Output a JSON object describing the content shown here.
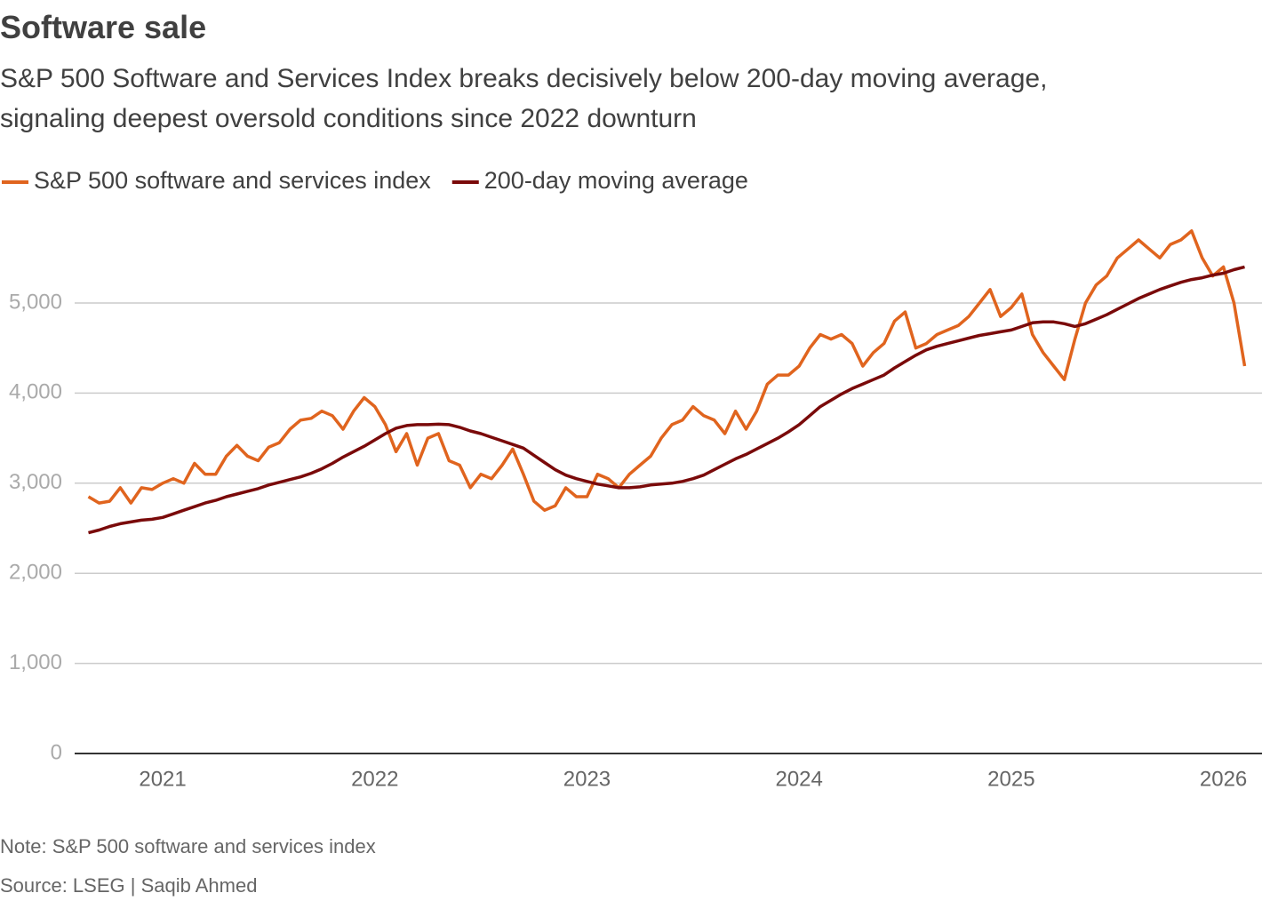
{
  "chart_data": {
    "type": "line",
    "title": "Software sale",
    "subtitle": "S&P 500 Software and Services Index breaks decisively below 200-day moving average, signaling deepest oversold conditions since 2022 downturn",
    "note": "Note: S&P 500 software and services index",
    "source": "Source: LSEG | Saqib Ahmed",
    "x": [
      2020.65,
      2020.7,
      2020.75,
      2020.8,
      2020.85,
      2020.9,
      2020.95,
      2021.0,
      2021.05,
      2021.1,
      2021.15,
      2021.2,
      2021.25,
      2021.3,
      2021.35,
      2021.4,
      2021.45,
      2021.5,
      2021.55,
      2021.6,
      2021.65,
      2021.7,
      2021.75,
      2021.8,
      2021.85,
      2021.9,
      2021.95,
      2022.0,
      2022.05,
      2022.1,
      2022.15,
      2022.2,
      2022.25,
      2022.3,
      2022.35,
      2022.4,
      2022.45,
      2022.5,
      2022.55,
      2022.6,
      2022.65,
      2022.7,
      2022.75,
      2022.8,
      2022.85,
      2022.9,
      2022.95,
      2023.0,
      2023.05,
      2023.1,
      2023.15,
      2023.2,
      2023.25,
      2023.3,
      2023.35,
      2023.4,
      2023.45,
      2023.5,
      2023.55,
      2023.6,
      2023.65,
      2023.7,
      2023.75,
      2023.8,
      2023.85,
      2023.9,
      2023.95,
      2024.0,
      2024.05,
      2024.1,
      2024.15,
      2024.2,
      2024.25,
      2024.3,
      2024.35,
      2024.4,
      2024.45,
      2024.5,
      2024.55,
      2024.6,
      2024.65,
      2024.7,
      2024.75,
      2024.8,
      2024.85,
      2024.9,
      2024.95,
      2025.0,
      2025.05,
      2025.1,
      2025.15,
      2025.2,
      2025.25,
      2025.3,
      2025.35,
      2025.4,
      2025.45,
      2025.5,
      2025.55,
      2025.6,
      2025.65,
      2025.7,
      2025.75,
      2025.8,
      2025.85,
      2025.9,
      2025.95,
      2026.0,
      2026.05,
      2026.1
    ],
    "series": [
      {
        "name": "S&P 500 software and services index",
        "color": "#e0641e",
        "values": [
          2850,
          2780,
          2800,
          2950,
          2780,
          2950,
          2930,
          3000,
          3050,
          3000,
          3220,
          3100,
          3100,
          3300,
          3420,
          3300,
          3250,
          3400,
          3450,
          3600,
          3700,
          3720,
          3800,
          3750,
          3600,
          3800,
          3950,
          3850,
          3650,
          3350,
          3550,
          3200,
          3500,
          3550,
          3250,
          3200,
          2950,
          3100,
          3050,
          3200,
          3380,
          3100,
          2800,
          2700,
          2750,
          2950,
          2850,
          2850,
          3100,
          3050,
          2950,
          3100,
          3200,
          3300,
          3500,
          3650,
          3700,
          3850,
          3750,
          3700,
          3550,
          3800,
          3600,
          3800,
          4100,
          4200,
          4200,
          4300,
          4500,
          4650,
          4600,
          4650,
          4550,
          4300,
          4450,
          4550,
          4800,
          4900,
          4500,
          4550,
          4650,
          4700,
          4750,
          4850,
          5000,
          5150,
          4850,
          4950,
          5100,
          4650,
          4450,
          4300,
          4150,
          4600,
          5000,
          5200,
          5300,
          5500,
          5600,
          5700,
          5600,
          5500,
          5650,
          5700,
          5800,
          5500,
          5300,
          5400,
          5000,
          4300
        ]
      },
      {
        "name": "200-day moving average",
        "color": "#7a0a0a",
        "values": [
          2450,
          2480,
          2520,
          2550,
          2570,
          2590,
          2600,
          2620,
          2660,
          2700,
          2740,
          2780,
          2810,
          2850,
          2880,
          2910,
          2940,
          2980,
          3010,
          3040,
          3070,
          3110,
          3160,
          3220,
          3290,
          3350,
          3410,
          3480,
          3550,
          3610,
          3640,
          3650,
          3650,
          3655,
          3650,
          3620,
          3580,
          3550,
          3510,
          3470,
          3430,
          3390,
          3310,
          3230,
          3150,
          3090,
          3050,
          3020,
          2990,
          2970,
          2950,
          2950,
          2960,
          2980,
          2990,
          3000,
          3020,
          3050,
          3090,
          3150,
          3210,
          3270,
          3320,
          3380,
          3440,
          3500,
          3570,
          3650,
          3750,
          3850,
          3920,
          3990,
          4050,
          4100,
          4150,
          4200,
          4280,
          4350,
          4420,
          4480,
          4520,
          4550,
          4580,
          4610,
          4640,
          4660,
          4680,
          4700,
          4740,
          4780,
          4790,
          4790,
          4770,
          4740,
          4770,
          4820,
          4870,
          4930,
          4990,
          5050,
          5100,
          5150,
          5190,
          5230,
          5260,
          5280,
          5310,
          5330,
          5370,
          5400
        ]
      }
    ],
    "xlim": [
      2020.585,
      2026.14
    ],
    "xticks": [
      2021,
      2022,
      2023,
      2024,
      2025,
      2026
    ],
    "ylim": [
      0,
      6000
    ],
    "yticks": [
      0,
      {
        "value": 1000,
        "label": "1,000"
      },
      {
        "value": 2000,
        "label": "2,000"
      },
      {
        "value": 3000,
        "label": "3,000"
      },
      {
        "value": 4000,
        "label": "4,000"
      },
      {
        "value": 5000,
        "label": "5,000"
      }
    ],
    "grid": true,
    "legend": "top-left"
  }
}
